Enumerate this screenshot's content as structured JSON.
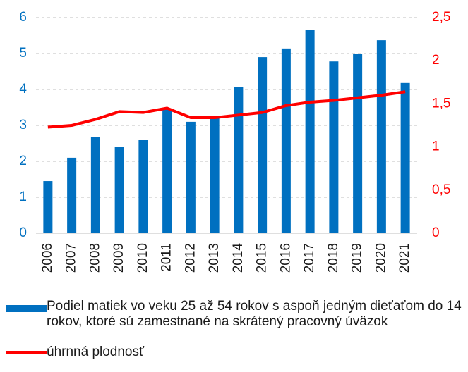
{
  "chart_data": {
    "type": "bar_line",
    "categories": [
      "2006",
      "2007",
      "2008",
      "2009",
      "2010",
      "2011",
      "2012",
      "2013",
      "2014",
      "2015",
      "2016",
      "2017",
      "2018",
      "2019",
      "2020",
      "2021"
    ],
    "series": [
      {
        "name": "Podiel matiek vo veku 25 až 54 rokov s aspoň jedným dieťaťom do 14 rokov, ktoré sú zamestnané na skrátený pracovný úväzok",
        "type": "bar",
        "color": "#0070c0",
        "values": [
          1.45,
          2.1,
          2.67,
          2.41,
          2.59,
          3.45,
          3.1,
          3.2,
          4.06,
          4.9,
          5.14,
          5.65,
          4.78,
          5.0,
          5.37,
          4.18
        ]
      },
      {
        "name": "úhrnná plodnosť",
        "type": "line",
        "axis": "y2",
        "color": "#ff0000",
        "values": [
          1.23,
          1.25,
          1.32,
          1.41,
          1.4,
          1.45,
          1.34,
          1.34,
          1.37,
          1.4,
          1.48,
          1.52,
          1.54,
          1.57,
          1.6,
          1.64
        ]
      }
    ],
    "ylim": [
      0,
      6
    ],
    "yticks": [
      0,
      1,
      2,
      3,
      4,
      5,
      6
    ],
    "y2lim": [
      0,
      2.5
    ],
    "y2ticks": [
      0,
      {
        "value": 0.5,
        "label": "0,5"
      },
      1,
      {
        "value": 1.5,
        "label": "1,5"
      },
      2,
      {
        "value": 2.5,
        "label": "2,5"
      }
    ],
    "grid": true
  }
}
